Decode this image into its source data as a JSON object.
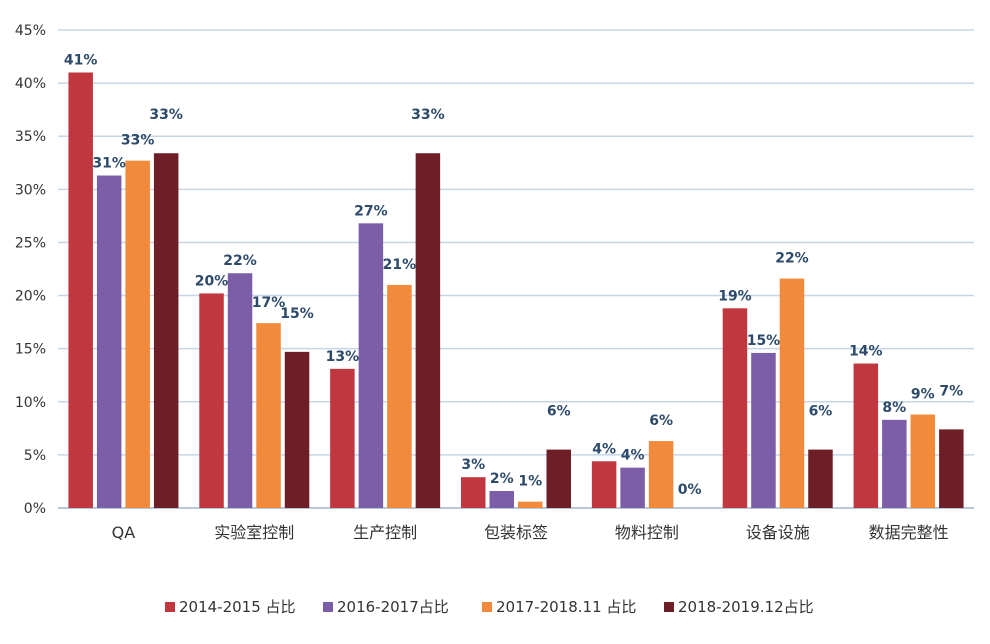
{
  "chart_data": {
    "type": "bar",
    "categories": [
      "QA",
      "实验室控制",
      "生产控制",
      "包装标签",
      "物料控制",
      "设备设施",
      "数据完整性"
    ],
    "series": [
      {
        "name": "2014-2015 占比",
        "color": "#c0373f",
        "values": [
          41,
          20.2,
          13.1,
          2.9,
          4.4,
          18.8,
          13.6
        ],
        "labels": [
          "41%",
          "20%",
          "13%",
          "3%",
          "4%",
          "19%",
          "14%"
        ]
      },
      {
        "name": "2016-2017占比",
        "color": "#7b5ea7",
        "values": [
          31.3,
          22.1,
          26.8,
          1.6,
          3.8,
          14.6,
          8.3
        ],
        "labels": [
          "31%",
          "22%",
          "27%",
          "2%",
          "4%",
          "15%",
          "8%"
        ]
      },
      {
        "name": "2017-2018.11 占比",
        "color": "#f28a3c",
        "values": [
          32.7,
          17.4,
          21,
          0.6,
          6.3,
          21.6,
          8.8
        ],
        "labels": [
          "33%",
          "17%",
          "21%",
          "1%",
          "6%",
          "22%",
          "9%"
        ]
      },
      {
        "name": "2018-2019.12占比",
        "color": "#6e1e26",
        "values": [
          33.4,
          14.7,
          33.4,
          5.5,
          0,
          5.5,
          7.4
        ],
        "labels": [
          "33%",
          "15%",
          "33%",
          "6%",
          "0%",
          "6%",
          "7%"
        ]
      }
    ],
    "yticks": [
      "0%",
      "5%",
      "10%",
      "15%",
      "20%",
      "25%",
      "30%",
      "35%",
      "40%",
      "45%"
    ],
    "ylim": [
      0,
      45
    ],
    "grid": true,
    "legend_position": "bottom"
  }
}
